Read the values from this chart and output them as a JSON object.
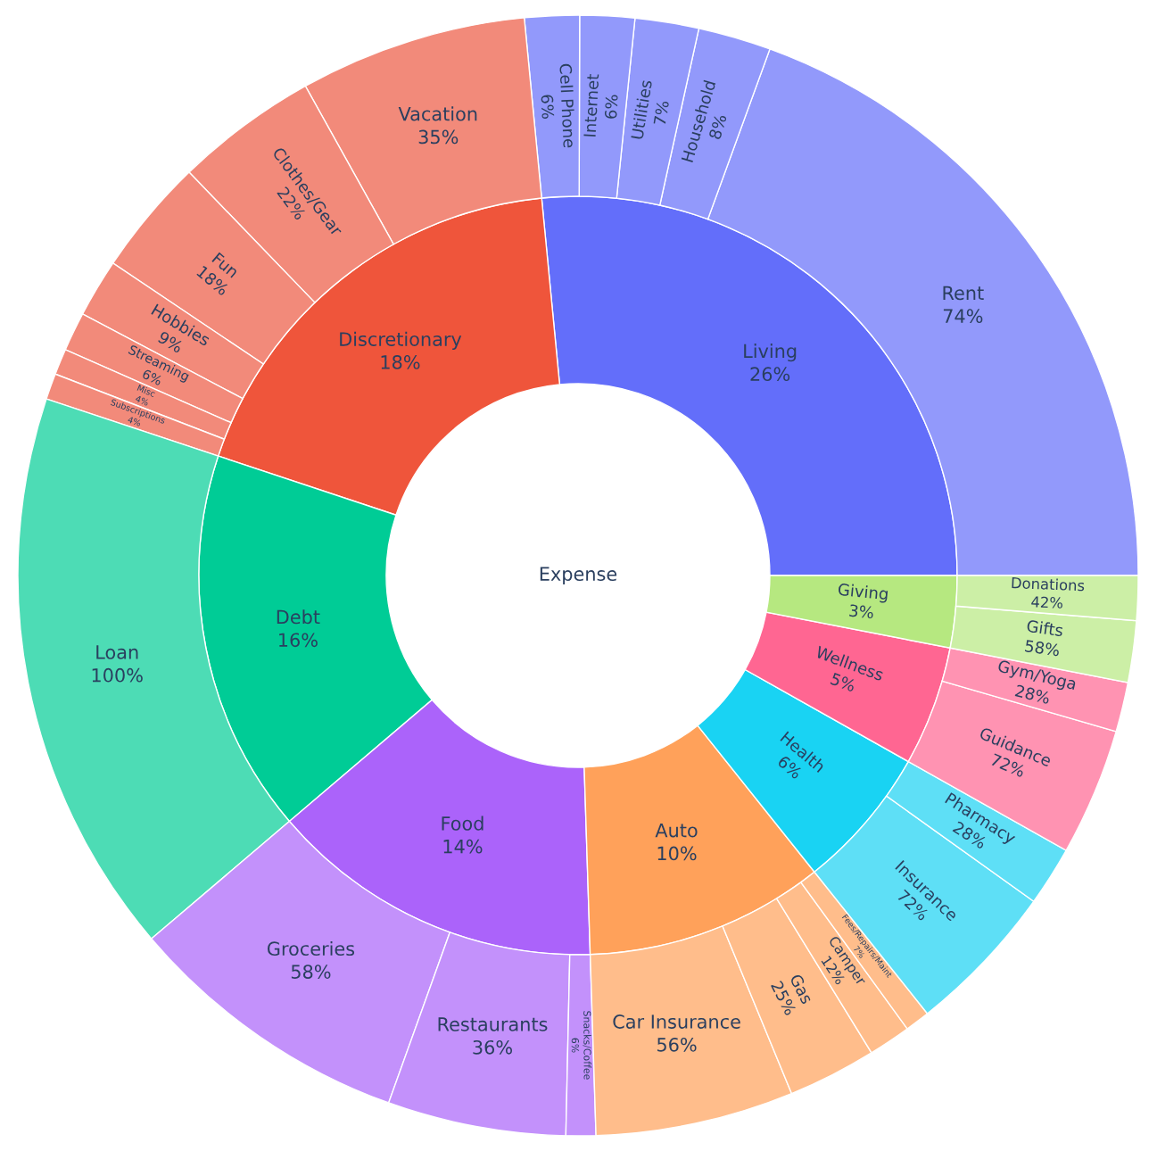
{
  "chart_data": {
    "type": "other",
    "annotations": [
      "Expense"
    ],
    "categories": [
      "Living",
      "Rent",
      "Household",
      "Utilities",
      "Internet",
      "Cell Phone",
      "Discretionary",
      "Vacation",
      "Clothes/Gear",
      "Fun",
      "Hobbies",
      "Streaming",
      "Misc",
      "Subscriptions",
      "Debt",
      "Loan",
      "Food",
      "Groceries",
      "Restaurants",
      "Snacks/Coffee",
      "Auto",
      "Car Insurance",
      "Gas",
      "Camper",
      "Fees/Repairs/Maint",
      "Health",
      "Insurance",
      "Pharmacy",
      "Wellness",
      "Guidance",
      "Gym/Yoga",
      "Giving",
      "Gifts",
      "Donations"
    ],
    "series": [
      {
        "colors": [
          "#636efa",
          null,
          null,
          null,
          null,
          null,
          "#ef553b",
          null,
          null,
          null,
          null,
          null,
          null,
          null,
          "#00cc96",
          null,
          "#ab63fa",
          null,
          null,
          null,
          "#ffa15a",
          null,
          null,
          null,
          null,
          "#19d3f3",
          null,
          null,
          "#ff6692",
          null,
          null,
          "#b6e880",
          null,
          null
        ],
        "values": [
          26,
          null,
          null,
          null,
          null,
          null,
          18,
          null,
          null,
          null,
          null,
          null,
          null,
          null,
          16,
          null,
          14,
          null,
          null,
          null,
          10,
          null,
          null,
          null,
          null,
          6,
          null,
          null,
          5,
          null,
          null,
          3,
          null,
          null
        ],
        "value_labels": [
          "26%",
          null,
          null,
          null,
          null,
          null,
          "18%",
          null,
          null,
          null,
          null,
          null,
          null,
          null,
          "16%",
          null,
          "14%",
          null,
          null,
          null,
          "10%",
          null,
          null,
          null,
          null,
          "6%",
          null,
          null,
          "5%",
          null,
          null,
          "3%",
          null,
          null
        ]
      },
      {
        "color": "#9299fb",
        "values": [
          null,
          74,
          8,
          7,
          6,
          6,
          null,
          null,
          null,
          null,
          null,
          null,
          null,
          null,
          null,
          null,
          null,
          null,
          null,
          null,
          null,
          null,
          null,
          null,
          null,
          null,
          null,
          null,
          null,
          null,
          null,
          null,
          null,
          null
        ],
        "value_labels": [
          null,
          "74%",
          "8%",
          "7%",
          "6%",
          "6%",
          null,
          null,
          null,
          null,
          null,
          null,
          null,
          null,
          null,
          null,
          null,
          null,
          null,
          null,
          null,
          null,
          null,
          null,
          null,
          null,
          null,
          null,
          null,
          null,
          null,
          null,
          null,
          null
        ]
      },
      {
        "color": "#f28a7a",
        "values": [
          null,
          null,
          null,
          null,
          null,
          null,
          null,
          35,
          22,
          18,
          9,
          6,
          4,
          4,
          null,
          null,
          null,
          null,
          null,
          null,
          null,
          null,
          null,
          null,
          null,
          null,
          null,
          null,
          null,
          null,
          null,
          null,
          null,
          null
        ],
        "value_labels": [
          null,
          null,
          null,
          null,
          null,
          null,
          null,
          "35%",
          "22%",
          "18%",
          "9%",
          "6%",
          "4%",
          "4%",
          null,
          null,
          null,
          null,
          null,
          null,
          null,
          null,
          null,
          null,
          null,
          null,
          null,
          null,
          null,
          null,
          null,
          null,
          null,
          null
        ]
      },
      {
        "color": "#4ddcb5",
        "values": [
          null,
          null,
          null,
          null,
          null,
          null,
          null,
          null,
          null,
          null,
          null,
          null,
          null,
          null,
          null,
          100,
          null,
          null,
          null,
          null,
          null,
          null,
          null,
          null,
          null,
          null,
          null,
          null,
          null,
          null,
          null,
          null,
          null,
          null
        ],
        "value_labels": [
          null,
          null,
          null,
          null,
          null,
          null,
          null,
          null,
          null,
          null,
          null,
          null,
          null,
          null,
          null,
          "100%",
          null,
          null,
          null,
          null,
          null,
          null,
          null,
          null,
          null,
          null,
          null,
          null,
          null,
          null,
          null,
          null,
          null,
          null
        ]
      },
      {
        "color": "#c391fb",
        "values": [
          null,
          null,
          null,
          null,
          null,
          null,
          null,
          null,
          null,
          null,
          null,
          null,
          null,
          null,
          null,
          null,
          null,
          58,
          36,
          6,
          null,
          null,
          null,
          null,
          null,
          null,
          null,
          null,
          null,
          null,
          null,
          null,
          null,
          null
        ],
        "value_labels": [
          null,
          null,
          null,
          null,
          null,
          null,
          null,
          null,
          null,
          null,
          null,
          null,
          null,
          null,
          null,
          null,
          null,
          "58%",
          "36%",
          "6%",
          null,
          null,
          null,
          null,
          null,
          null,
          null,
          null,
          null,
          null,
          null,
          null,
          null,
          null
        ]
      },
      {
        "color": "#ffbd8b",
        "values": [
          null,
          null,
          null,
          null,
          null,
          null,
          null,
          null,
          null,
          null,
          null,
          null,
          null,
          null,
          null,
          null,
          null,
          null,
          null,
          null,
          null,
          56,
          25,
          12,
          7,
          null,
          null,
          null,
          null,
          null,
          null,
          null,
          null,
          null
        ],
        "value_labels": [
          null,
          null,
          null,
          null,
          null,
          null,
          null,
          null,
          null,
          null,
          null,
          null,
          null,
          null,
          null,
          null,
          null,
          null,
          null,
          null,
          null,
          "56%",
          "25%",
          "12%",
          "7%",
          null,
          null,
          null,
          null,
          null,
          null,
          null,
          null,
          null
        ]
      },
      {
        "color": "#5edff6",
        "values": [
          null,
          null,
          null,
          null,
          null,
          null,
          null,
          null,
          null,
          null,
          null,
          null,
          null,
          null,
          null,
          null,
          null,
          null,
          null,
          null,
          null,
          null,
          null,
          null,
          null,
          null,
          72,
          28,
          null,
          null,
          null,
          null,
          null,
          null
        ],
        "value_labels": [
          null,
          null,
          null,
          null,
          null,
          null,
          null,
          null,
          null,
          null,
          null,
          null,
          null,
          null,
          null,
          null,
          null,
          null,
          null,
          null,
          null,
          null,
          null,
          null,
          null,
          null,
          "72%",
          "28%",
          null,
          null,
          null,
          null,
          null,
          null
        ]
      },
      {
        "color": "#ff93b2",
        "values": [
          null,
          null,
          null,
          null,
          null,
          null,
          null,
          null,
          null,
          null,
          null,
          null,
          null,
          null,
          null,
          null,
          null,
          null,
          null,
          null,
          null,
          null,
          null,
          null,
          null,
          null,
          null,
          null,
          null,
          72,
          28,
          null,
          null,
          null
        ],
        "value_labels": [
          null,
          null,
          null,
          null,
          null,
          null,
          null,
          null,
          null,
          null,
          null,
          null,
          null,
          null,
          null,
          null,
          null,
          null,
          null,
          null,
          null,
          null,
          null,
          null,
          null,
          null,
          null,
          null,
          null,
          "72%",
          "28%",
          null,
          null,
          null
        ]
      },
      {
        "color": "#ccefa6",
        "values": [
          null,
          null,
          null,
          null,
          null,
          null,
          null,
          null,
          null,
          null,
          null,
          null,
          null,
          null,
          null,
          null,
          null,
          null,
          null,
          null,
          null,
          null,
          null,
          null,
          null,
          null,
          null,
          null,
          null,
          null,
          null,
          null,
          58,
          42
        ],
        "value_labels": [
          null,
          null,
          null,
          null,
          null,
          null,
          null,
          null,
          null,
          null,
          null,
          null,
          null,
          null,
          null,
          null,
          null,
          null,
          null,
          null,
          null,
          null,
          null,
          null,
          null,
          null,
          null,
          null,
          null,
          null,
          null,
          null,
          "58%",
          "42%"
        ]
      }
    ]
  }
}
